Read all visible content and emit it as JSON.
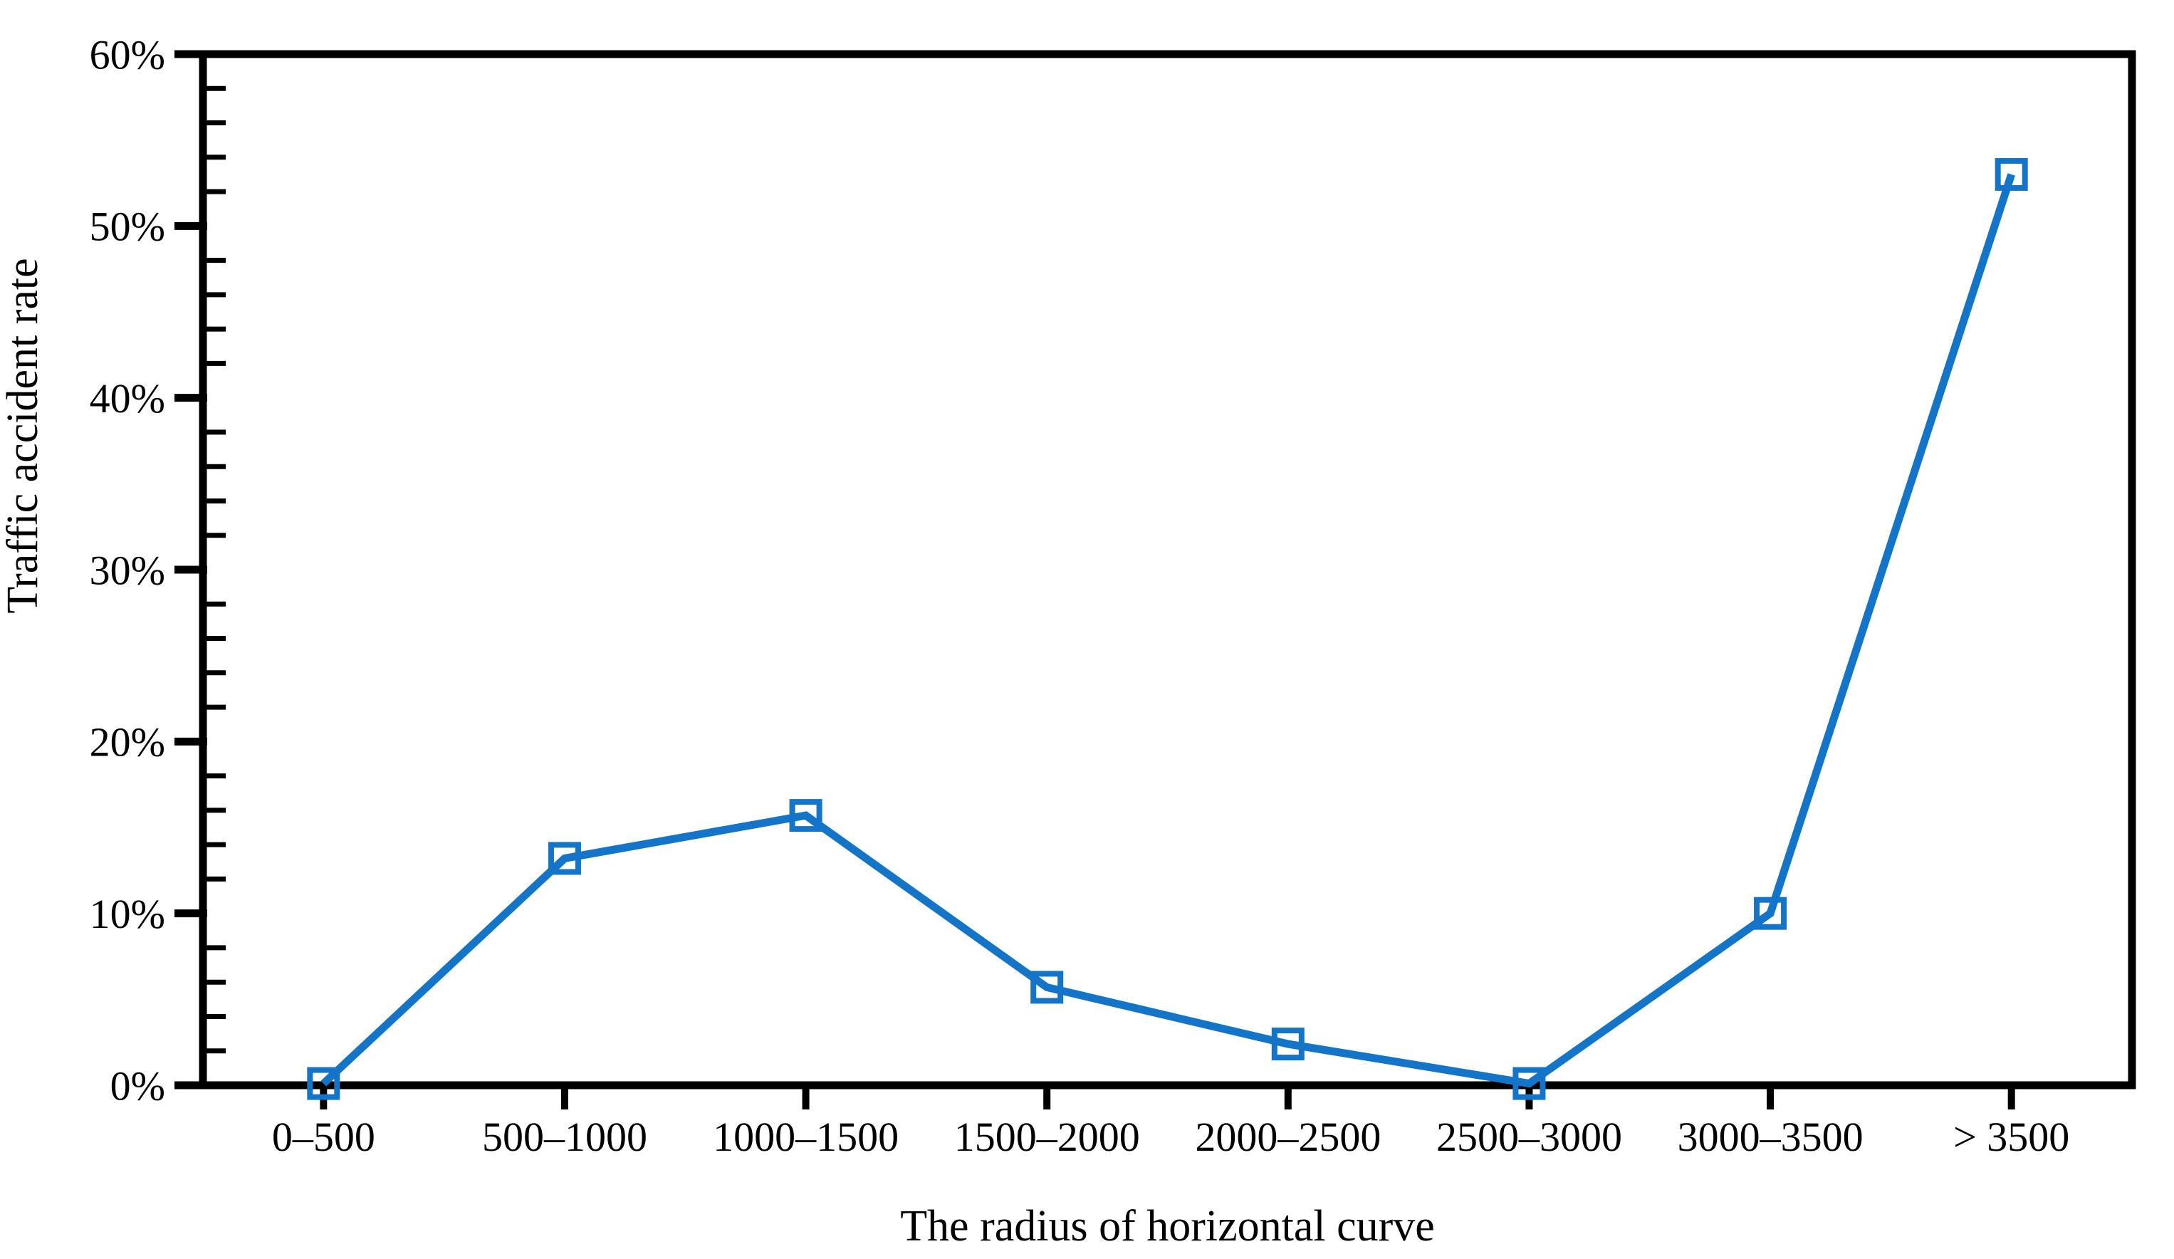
{
  "chart_data": {
    "type": "line",
    "title": "",
    "categories": [
      "0–500",
      "500–1000",
      "1000–1500",
      "1500–2000",
      "2000–2500",
      "2500–3000",
      "3000–3500",
      "> 3500"
    ],
    "series": [
      {
        "name": "Traffic accident rate",
        "values": [
          0.1,
          13.2,
          15.7,
          5.7,
          2.4,
          0.1,
          10.0,
          53.0
        ]
      }
    ],
    "xlabel": "The radius of horizontal curve",
    "ylabel": "Traffic accident rate",
    "ylim": [
      0,
      60
    ],
    "ytick_step": 10,
    "yminor_step": 2,
    "ytick_labels": [
      "0%",
      "10%",
      "20%",
      "30%",
      "40%",
      "50%",
      "60%"
    ],
    "ytick_format": "percent",
    "grid": false,
    "legend_position": "none",
    "line_color": "#1374C8",
    "marker": "open-square",
    "axis_color": "#000000",
    "background_color": "#ffffff"
  }
}
